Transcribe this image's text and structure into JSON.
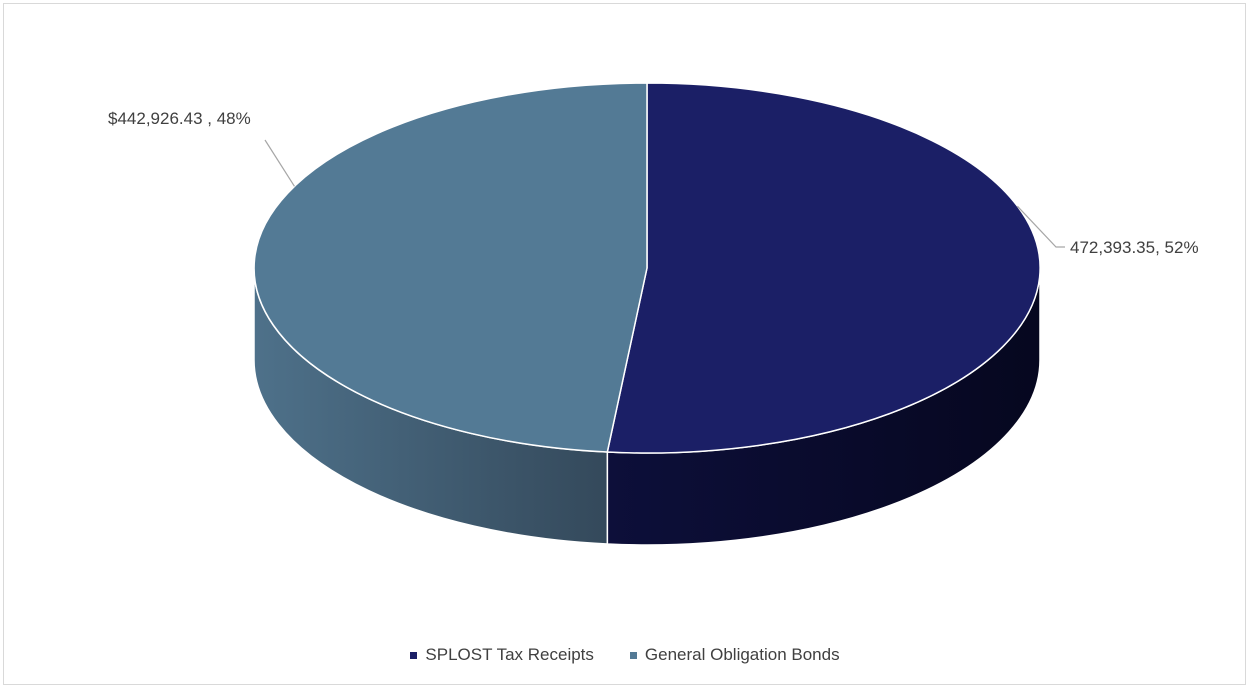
{
  "chart_data": {
    "type": "pie",
    "style": "3d",
    "title": "",
    "slices": [
      {
        "name": "SPLOST Tax Receipts",
        "value": 472393.35,
        "percent": 52,
        "color": "#1b1f66",
        "label": "472,393.35, 52%"
      },
      {
        "name": "General Obligation Bonds",
        "value": 442926.43,
        "percent": 48,
        "color": "#537a95",
        "label": "$442,926.43 , 48%"
      }
    ],
    "legend_position": "bottom"
  }
}
